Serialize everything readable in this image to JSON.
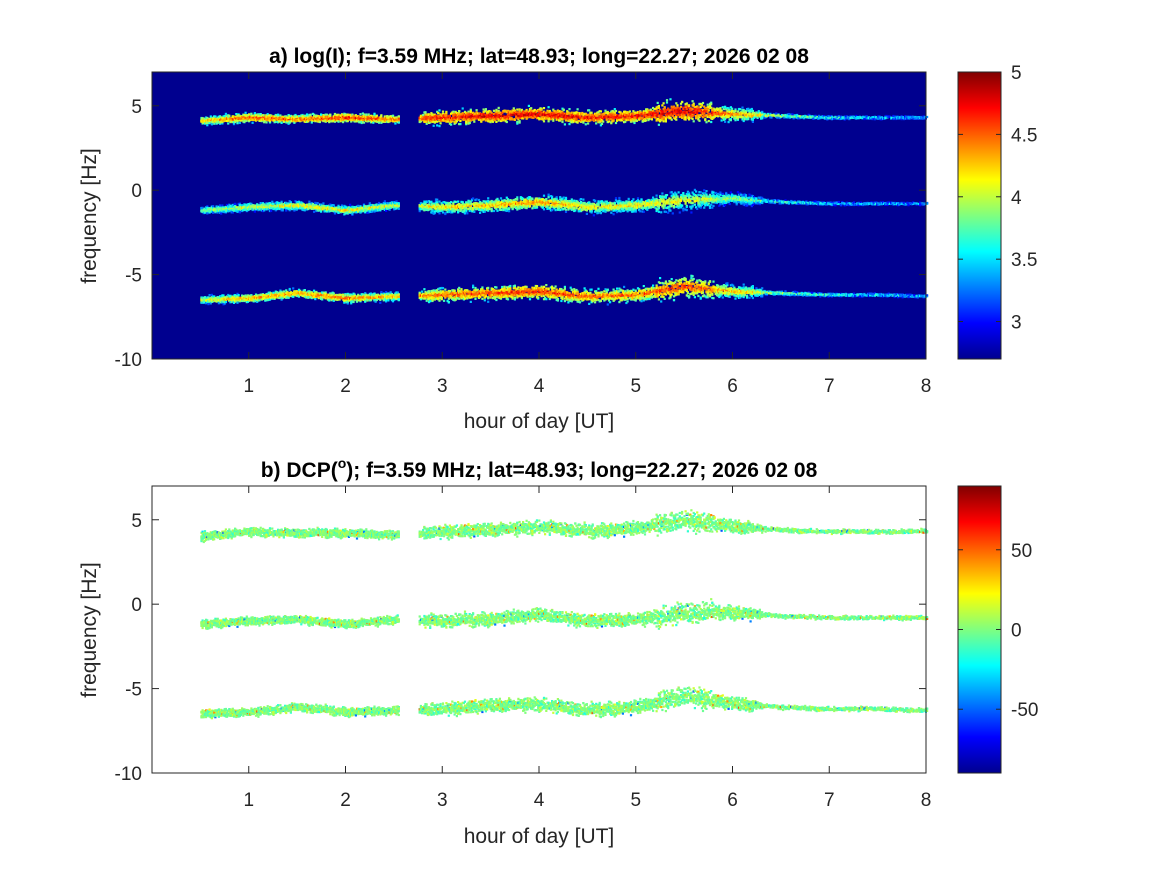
{
  "chart_data": [
    {
      "type": "heatmap",
      "title": "a) log(I); f=3.59 MHz;  lat=48.93; long=22.27; 2026 02 08",
      "xlabel": "hour of day [UT]",
      "ylabel": "frequency [Hz]",
      "xlim": [
        0,
        8
      ],
      "ylim": [
        -10,
        7
      ],
      "xticks": [
        1,
        2,
        3,
        4,
        5,
        6,
        7,
        8
      ],
      "xtick_labels": [
        "1",
        "2",
        "3",
        "4",
        "5",
        "6",
        "7",
        "8"
      ],
      "yticks": [
        -10,
        -5,
        0,
        5
      ],
      "ytick_labels": [
        "-10",
        "-5",
        "0",
        "5"
      ],
      "background": "#00008f",
      "colormap": "jet",
      "colorbar": {
        "range": [
          2.7,
          5
        ],
        "ticks": [
          3,
          3.5,
          4,
          4.5,
          5
        ],
        "tick_labels": [
          "3",
          "3.5",
          "4",
          "4.5",
          "5"
        ]
      },
      "data_gap_hours": [
        2.55,
        2.75
      ],
      "traces": [
        {
          "center_hz": 4.2,
          "hours": [
            0.5,
            1,
            1.5,
            2,
            2.5,
            3,
            3.5,
            4,
            4.5,
            5,
            5.5,
            6,
            6.5,
            7,
            7.5,
            8
          ],
          "freq_hz": [
            4.1,
            4.3,
            4.2,
            4.3,
            4.2,
            4.3,
            4.4,
            4.5,
            4.3,
            4.4,
            4.7,
            4.5,
            4.4,
            4.3,
            4.3,
            4.3
          ],
          "peak_log_intensity": [
            4.5,
            4.8,
            4.7,
            4.9,
            4.7,
            4.9,
            5.0,
            5.0,
            4.9,
            4.9,
            5.0,
            4.6,
            4.2,
            3.9,
            3.8,
            3.7
          ]
        },
        {
          "center_hz": -1.0,
          "hours": [
            0.5,
            1,
            1.5,
            2,
            2.5,
            3,
            3.5,
            4,
            4.5,
            5,
            5.5,
            6,
            6.5,
            7,
            7.5,
            8
          ],
          "freq_hz": [
            -1.2,
            -1.0,
            -0.9,
            -1.2,
            -0.9,
            -1.0,
            -0.9,
            -0.7,
            -1.0,
            -0.9,
            -0.6,
            -0.5,
            -0.7,
            -0.8,
            -0.8,
            -0.8
          ],
          "peak_log_intensity": [
            4.1,
            4.3,
            4.4,
            4.4,
            4.3,
            4.4,
            4.5,
            4.6,
            4.4,
            4.4,
            4.3,
            4.1,
            3.9,
            3.8,
            3.7,
            3.6
          ]
        },
        {
          "center_hz": -6.3,
          "hours": [
            0.5,
            1,
            1.5,
            2,
            2.5,
            3,
            3.5,
            4,
            4.5,
            5,
            5.5,
            6,
            6.5,
            7,
            7.5,
            8
          ],
          "freq_hz": [
            -6.5,
            -6.4,
            -6.1,
            -6.4,
            -6.3,
            -6.2,
            -6.1,
            -6.0,
            -6.3,
            -6.2,
            -5.7,
            -6.0,
            -6.1,
            -6.2,
            -6.2,
            -6.3
          ],
          "peak_log_intensity": [
            4.3,
            4.6,
            4.6,
            4.7,
            4.5,
            4.7,
            4.8,
            4.9,
            4.7,
            4.7,
            4.8,
            4.5,
            4.1,
            3.9,
            3.8,
            3.7
          ]
        }
      ]
    },
    {
      "type": "heatmap",
      "title": "b) DCP(o); f=3.59 MHz;  lat=48.93; long=22.27; 2026 02 08",
      "title_parts": {
        "pre": "b) DCP(",
        "sup": "o",
        "post": "); f=3.59 MHz;  lat=48.93; long=22.27; 2026 02 08"
      },
      "xlabel": "hour of day [UT]",
      "ylabel": "frequency [Hz]",
      "xlim": [
        0,
        8
      ],
      "ylim": [
        -10,
        7
      ],
      "xticks": [
        1,
        2,
        3,
        4,
        5,
        6,
        7,
        8
      ],
      "xtick_labels": [
        "1",
        "2",
        "3",
        "4",
        "5",
        "6",
        "7",
        "8"
      ],
      "yticks": [
        -10,
        -5,
        0,
        5
      ],
      "ytick_labels": [
        "-10",
        "-5",
        "0",
        "5"
      ],
      "background": "#ffffff",
      "colormap": "jet",
      "colorbar": {
        "range": [
          -90,
          90
        ],
        "ticks": [
          -50,
          0,
          50
        ],
        "tick_labels": [
          "-50",
          "0",
          "50"
        ]
      },
      "data_gap_hours": [
        2.55,
        2.75
      ],
      "typical_dcp_deg": 0,
      "traces": [
        {
          "center_hz": 4.2,
          "hours": [
            0.5,
            1,
            1.5,
            2,
            2.5,
            3,
            3.5,
            4,
            4.5,
            5,
            5.5,
            6,
            6.5,
            7,
            7.5,
            8
          ],
          "freq_hz": [
            4.0,
            4.3,
            4.2,
            4.2,
            4.1,
            4.3,
            4.4,
            4.6,
            4.3,
            4.5,
            5.0,
            4.6,
            4.4,
            4.3,
            4.3,
            4.3
          ]
        },
        {
          "center_hz": -1.0,
          "hours": [
            0.5,
            1,
            1.5,
            2,
            2.5,
            3,
            3.5,
            4,
            4.5,
            5,
            5.5,
            6,
            6.5,
            7,
            7.5,
            8
          ],
          "freq_hz": [
            -1.2,
            -1.0,
            -0.9,
            -1.2,
            -0.9,
            -1.0,
            -0.9,
            -0.6,
            -1.0,
            -0.9,
            -0.5,
            -0.5,
            -0.7,
            -0.8,
            -0.8,
            -0.8
          ]
        },
        {
          "center_hz": -6.3,
          "hours": [
            0.5,
            1,
            1.5,
            2,
            2.5,
            3,
            3.5,
            4,
            4.5,
            5,
            5.5,
            6,
            6.5,
            7,
            7.5,
            8
          ],
          "freq_hz": [
            -6.5,
            -6.4,
            -6.1,
            -6.4,
            -6.3,
            -6.2,
            -6.0,
            -5.9,
            -6.3,
            -6.1,
            -5.4,
            -5.9,
            -6.1,
            -6.2,
            -6.2,
            -6.3
          ]
        }
      ]
    }
  ]
}
